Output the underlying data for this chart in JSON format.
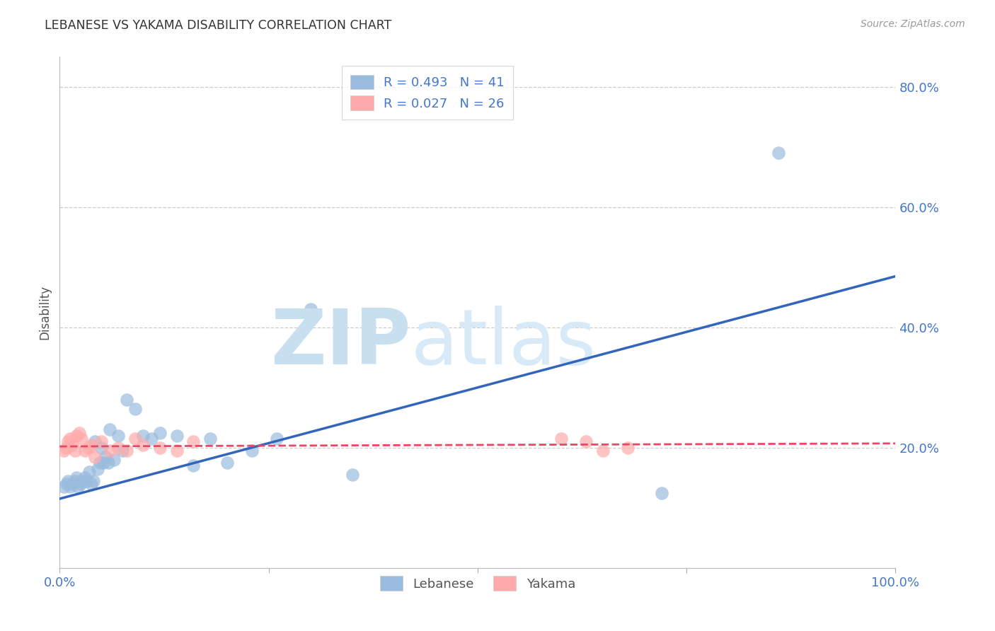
{
  "title": "LEBANESE VS YAKAMA DISABILITY CORRELATION CHART",
  "source": "Source: ZipAtlas.com",
  "ylabel": "Disability",
  "xlim": [
    0,
    1.0
  ],
  "ylim": [
    0,
    0.85
  ],
  "xticks": [
    0.0,
    0.25,
    0.5,
    0.75,
    1.0
  ],
  "xticklabels": [
    "0.0%",
    "",
    "",
    "",
    "100.0%"
  ],
  "yticks": [
    0.0,
    0.2,
    0.4,
    0.6,
    0.8
  ],
  "yticklabels_right": [
    "",
    "20.0%",
    "40.0%",
    "60.0%",
    "80.0%"
  ],
  "legend_text_color": "#4477CC",
  "blue_color": "#99BBDD",
  "pink_color": "#FFAAAA",
  "line_blue": "#3366BB",
  "line_pink": "#EE4466",
  "grid_color": "#cccccc",
  "tick_label_color": "#4477CC",
  "blue_points_x": [
    0.005,
    0.008,
    0.01,
    0.012,
    0.015,
    0.018,
    0.02,
    0.022,
    0.025,
    0.027,
    0.03,
    0.032,
    0.035,
    0.038,
    0.04,
    0.042,
    0.045,
    0.048,
    0.05,
    0.052,
    0.055,
    0.058,
    0.06,
    0.065,
    0.07,
    0.075,
    0.08,
    0.09,
    0.1,
    0.11,
    0.12,
    0.14,
    0.16,
    0.18,
    0.2,
    0.23,
    0.26,
    0.3,
    0.35,
    0.72,
    0.86
  ],
  "blue_points_y": [
    0.135,
    0.14,
    0.145,
    0.135,
    0.14,
    0.145,
    0.15,
    0.135,
    0.14,
    0.145,
    0.15,
    0.145,
    0.16,
    0.14,
    0.145,
    0.21,
    0.165,
    0.175,
    0.2,
    0.175,
    0.185,
    0.175,
    0.23,
    0.18,
    0.22,
    0.195,
    0.28,
    0.265,
    0.22,
    0.215,
    0.225,
    0.22,
    0.17,
    0.215,
    0.175,
    0.195,
    0.215,
    0.43,
    0.155,
    0.125,
    0.69
  ],
  "pink_points_x": [
    0.005,
    0.008,
    0.01,
    0.012,
    0.015,
    0.018,
    0.02,
    0.023,
    0.026,
    0.03,
    0.034,
    0.038,
    0.042,
    0.05,
    0.06,
    0.07,
    0.08,
    0.09,
    0.1,
    0.12,
    0.14,
    0.16,
    0.6,
    0.63,
    0.65,
    0.68
  ],
  "pink_points_y": [
    0.195,
    0.2,
    0.21,
    0.215,
    0.205,
    0.195,
    0.22,
    0.225,
    0.215,
    0.195,
    0.2,
    0.205,
    0.185,
    0.21,
    0.195,
    0.2,
    0.195,
    0.215,
    0.205,
    0.2,
    0.195,
    0.21,
    0.215,
    0.21,
    0.195,
    0.2
  ],
  "blue_line_x": [
    0.0,
    1.0
  ],
  "blue_line_y": [
    0.115,
    0.485
  ],
  "pink_line_x": [
    0.0,
    1.0
  ],
  "pink_line_y": [
    0.202,
    0.207
  ]
}
